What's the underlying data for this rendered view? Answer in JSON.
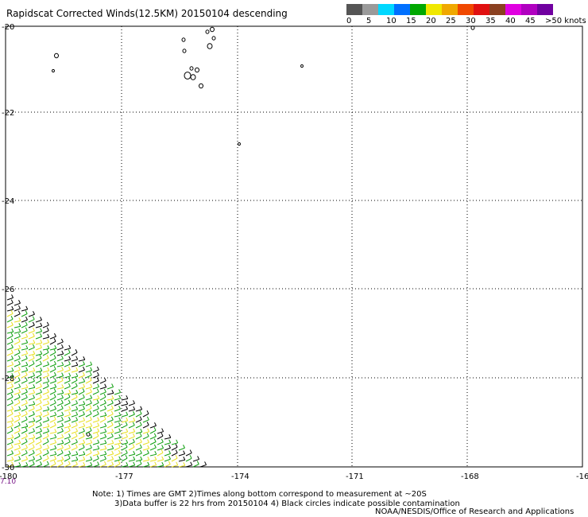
{
  "title": "Rapidscat Corrected Winds(12.5KM) 20150104 descending",
  "legend": {
    "labels": [
      "0",
      "5",
      "10",
      "15",
      "20",
      "25",
      "30",
      "35",
      "40",
      "45",
      ">50 knots"
    ],
    "colors": [
      "#555555",
      "#9a9a9a",
      "#00d8ff",
      "#0070ff",
      "#00a800",
      "#f0e800",
      "#f0a800",
      "#f04800",
      "#e01010",
      "#8a4020",
      "#e000e0",
      "#b000c0",
      "#7000a0"
    ]
  },
  "axes": {
    "lat_labels": [
      "-20",
      "-22",
      "-24",
      "-26",
      "-28",
      "-30"
    ],
    "lon_labels": [
      "-180",
      "-177",
      "-174",
      "-171",
      "-168",
      "-16"
    ]
  },
  "timestamp": "7.10",
  "notes": [
    "Note: 1) Times are GMT 2)Times along bottom correspond to measurement at ~20S",
    "3)Data buffer is 22 hrs from 20150104 4) Black circles indicate possible contamination"
  ],
  "credit": "NOAA/NESDIS/Office of Research and Applications",
  "colors": {
    "wind_green": "#10a010",
    "wind_yellow": "#e8e020",
    "wind_black": "#000000",
    "grid": "#000000"
  }
}
